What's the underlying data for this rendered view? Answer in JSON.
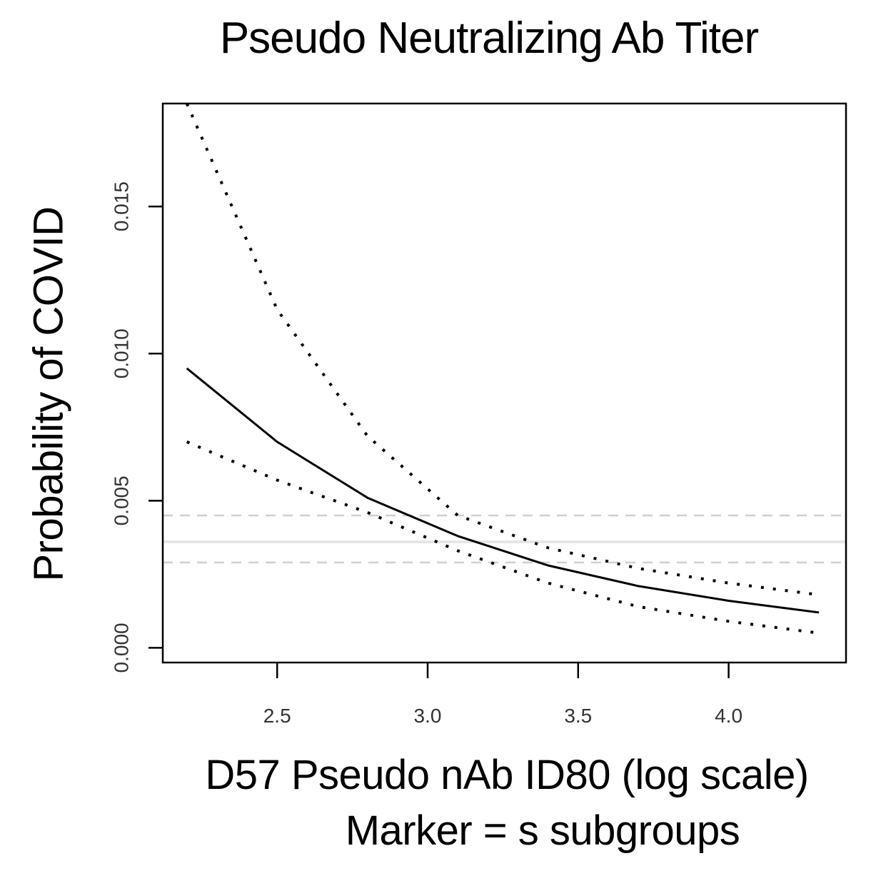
{
  "chart_data": {
    "type": "line",
    "title": "Pseudo Neutralizing Ab Titer",
    "xlabel": "D57 Pseudo nAb ID80 (log scale)",
    "xsublabel": "Marker = s subgroups",
    "ylabel": "Probability of COVID",
    "xlim": [
      2.12,
      4.39
    ],
    "ylim": [
      -0.0005,
      0.0185
    ],
    "x_ticks": [
      2.5,
      3.0,
      3.5,
      4.0
    ],
    "x_tick_labels": [
      "2.5",
      "3.0",
      "3.5",
      "4.0"
    ],
    "y_ticks": [
      0.0,
      0.005,
      0.01,
      0.015
    ],
    "y_tick_labels": [
      "0.000",
      "0.005",
      "0.010",
      "0.015"
    ],
    "grid": false,
    "series": [
      {
        "role": "estimate",
        "style": "solid",
        "x": [
          2.2,
          2.5,
          2.8,
          3.1,
          3.4,
          3.7,
          4.0,
          4.3
        ],
        "y": [
          0.0095,
          0.007,
          0.0051,
          0.0038,
          0.0028,
          0.0021,
          0.0016,
          0.0012
        ]
      },
      {
        "role": "upper-ci",
        "style": "dotted",
        "x": [
          2.2,
          2.5,
          2.8,
          3.1,
          3.4,
          3.7,
          4.0,
          4.3
        ],
        "y": [
          0.0185,
          0.0115,
          0.0072,
          0.0045,
          0.0034,
          0.0027,
          0.0022,
          0.0018
        ]
      },
      {
        "role": "lower-ci",
        "style": "dotted",
        "x": [
          2.2,
          2.5,
          2.8,
          3.1,
          3.4,
          3.7,
          4.0,
          4.3
        ],
        "y": [
          0.007,
          0.0057,
          0.0046,
          0.0033,
          0.0022,
          0.0014,
          0.0009,
          0.0005
        ]
      }
    ],
    "reference_lines": [
      {
        "y": 0.0036,
        "style": "solid",
        "color": "#e5e5e5"
      },
      {
        "y": 0.0045,
        "style": "dashed",
        "color": "#d0d0d0"
      },
      {
        "y": 0.0029,
        "style": "dashed",
        "color": "#d0d0d0"
      }
    ],
    "colors": {
      "lines": "#000000",
      "axis": "#000000",
      "tick_text": "#333333"
    }
  }
}
